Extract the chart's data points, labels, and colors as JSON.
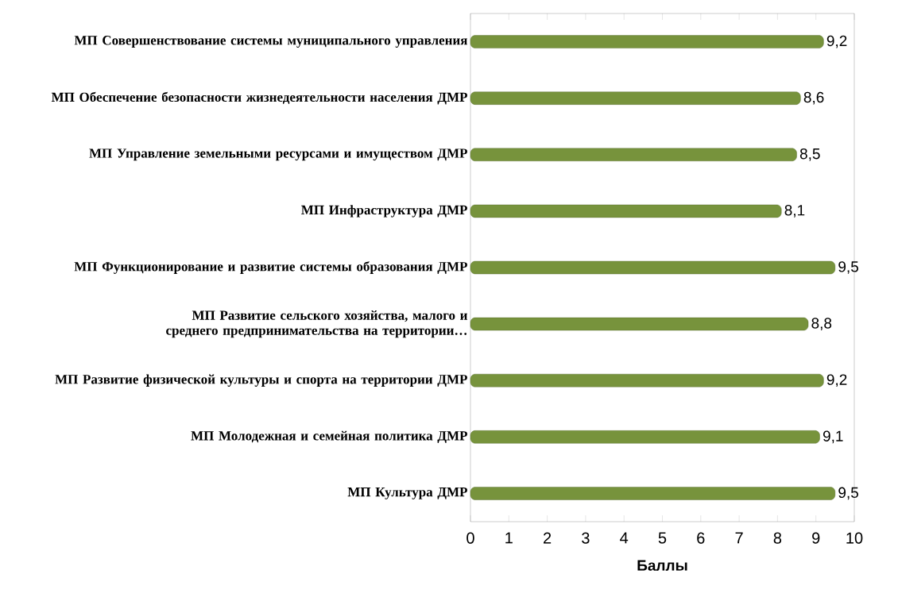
{
  "chart_data": {
    "type": "bar",
    "orientation": "horizontal",
    "xlabel": "Баллы",
    "categories": [
      "МП Совершенствование системы муниципального управления",
      "МП Обеспечение безопасности жизнедеятельности населения ДМР",
      "МП Управление земельными ресурсами и имуществом ДМР",
      "МП Инфраструктура ДМР",
      "МП Функционирование и развитие системы образования ДМР",
      "МП Развитие сельского хозяйства, малого и среднего предпринимательства на территории…",
      "МП Развитие физической культуры и спорта на территории ДМР",
      "МП Молодежная и семейная политика ДМР",
      "МП Культура ДМР"
    ],
    "values": [
      9.2,
      8.6,
      8.5,
      8.1,
      9.5,
      8.8,
      9.2,
      9.1,
      9.5
    ],
    "value_labels": [
      "9,2",
      "8,6",
      "8,5",
      "8,1",
      "9,5",
      "8,8",
      "9,2",
      "9,1",
      "9,5"
    ],
    "color": "#77933c",
    "xlim": [
      0,
      10
    ],
    "xticks": [
      0,
      1,
      2,
      3,
      4,
      5,
      6,
      7,
      8,
      9,
      10
    ]
  }
}
